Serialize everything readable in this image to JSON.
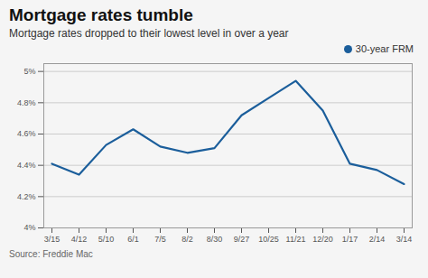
{
  "chart_data": {
    "type": "line",
    "title": "Mortgage rates tumble",
    "subtitle": "Mortgage rates dropped to their lowest level in over a year",
    "source": "Source: Freddie Mac",
    "categories": [
      "3/15",
      "4/12",
      "5/10",
      "6/1",
      "7/5",
      "8/2",
      "8/30",
      "9/27",
      "10/25",
      "11/21",
      "12/20",
      "1/17",
      "2/14",
      "3/14"
    ],
    "series": [
      {
        "name": "30-year FRM",
        "color": "#1b5e9b",
        "values": [
          4.41,
          4.34,
          4.53,
          4.63,
          4.52,
          4.48,
          4.51,
          4.72,
          4.83,
          4.94,
          4.75,
          4.41,
          4.37,
          4.28
        ]
      }
    ],
    "ylim": [
      4.0,
      5.05
    ],
    "yticks": [
      {
        "value": 4.0,
        "label": "4%"
      },
      {
        "value": 4.2,
        "label": "4.2%"
      },
      {
        "value": 4.4,
        "label": "4.4%"
      },
      {
        "value": 4.6,
        "label": "4.6%"
      },
      {
        "value": 4.8,
        "label": "4.8%"
      },
      {
        "value": 5.0,
        "label": "5%"
      }
    ],
    "grid": true,
    "legend": "top-right"
  }
}
